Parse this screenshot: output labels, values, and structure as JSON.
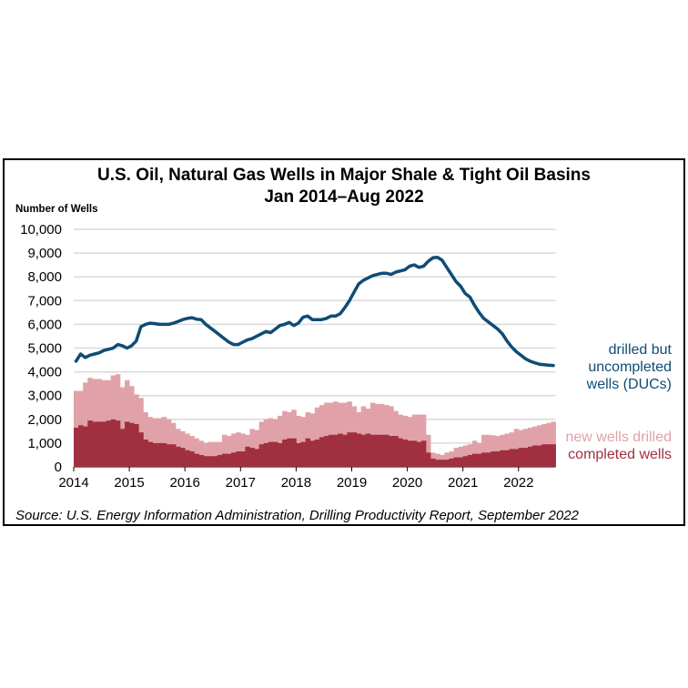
{
  "chart_data": {
    "type": "area",
    "title": "U.S. Oil, Natural Gas Wells in Major Shale & Tight Oil Basins",
    "subtitle": "Jan 2014–Aug 2022",
    "ylabel": "Number of Wells",
    "xlabel": "",
    "ylim": [
      0,
      10000
    ],
    "yticks": [
      "0",
      "1,000",
      "2,000",
      "3,000",
      "4,000",
      "5,000",
      "6,000",
      "7,000",
      "8,000",
      "9,000",
      "10,000"
    ],
    "xticks": [
      "2014",
      "2015",
      "2016",
      "2017",
      "2018",
      "2019",
      "2020",
      "2021",
      "2022"
    ],
    "x_start": "2014-01",
    "x_end": "2022-08",
    "frequency": "monthly",
    "grid": true,
    "source": "Source: U.S. Energy Information Administration, Drilling Productivity Report, September 2022",
    "series": [
      {
        "name": "new wells drilled",
        "kind": "step-area",
        "color": "#e0a2a8",
        "values": [
          3200,
          3200,
          3550,
          3750,
          3700,
          3700,
          3650,
          3650,
          3850,
          3900,
          3350,
          3650,
          3400,
          3050,
          2900,
          2300,
          2100,
          2050,
          2050,
          2100,
          2000,
          1850,
          1600,
          1500,
          1400,
          1300,
          1200,
          1100,
          1000,
          1050,
          1050,
          1050,
          1350,
          1300,
          1400,
          1450,
          1400,
          1350,
          1600,
          1550,
          1900,
          2000,
          2050,
          2000,
          2150,
          2350,
          2300,
          2400,
          2150,
          2100,
          2300,
          2250,
          2500,
          2600,
          2700,
          2700,
          2750,
          2700,
          2700,
          2750,
          2550,
          2300,
          2550,
          2450,
          2700,
          2650,
          2650,
          2600,
          2550,
          2350,
          2200,
          2150,
          2100,
          2200,
          2200,
          2200,
          1350,
          600,
          550,
          500,
          600,
          650,
          800,
          850,
          900,
          950,
          1100,
          1000,
          1350,
          1350,
          1330,
          1300,
          1350,
          1400,
          1450,
          1600,
          1550,
          1600,
          1650,
          1700,
          1750,
          1800,
          1850,
          1900
        ]
      },
      {
        "name": "completed wells",
        "kind": "step-area",
        "color": "#a0303f",
        "values": [
          1650,
          1750,
          1700,
          1950,
          1900,
          1900,
          1900,
          1950,
          2000,
          1950,
          1600,
          1900,
          1850,
          1800,
          1450,
          1150,
          1050,
          1000,
          1000,
          1000,
          950,
          950,
          850,
          800,
          700,
          650,
          550,
          500,
          450,
          450,
          450,
          500,
          550,
          550,
          600,
          650,
          650,
          850,
          800,
          750,
          950,
          1000,
          1050,
          1050,
          1000,
          1150,
          1200,
          1200,
          1000,
          1050,
          1200,
          1100,
          1150,
          1250,
          1300,
          1350,
          1350,
          1400,
          1350,
          1450,
          1450,
          1400,
          1350,
          1400,
          1350,
          1350,
          1350,
          1350,
          1300,
          1300,
          1200,
          1150,
          1100,
          1100,
          1050,
          1100,
          600,
          350,
          300,
          300,
          300,
          350,
          400,
          400,
          450,
          500,
          550,
          550,
          600,
          600,
          650,
          650,
          700,
          700,
          750,
          750,
          800,
          800,
          850,
          900,
          900,
          950,
          950,
          950
        ]
      },
      {
        "name": "drilled but uncompleted wells (DUCs)",
        "kind": "line",
        "color": "#0f4c75",
        "values": [
          4450,
          4750,
          4600,
          4700,
          4750,
          4800,
          4900,
          4950,
          5000,
          5150,
          5100,
          5000,
          5100,
          5300,
          5900,
          6000,
          6050,
          6030,
          6000,
          6000,
          6000,
          6050,
          6120,
          6200,
          6250,
          6280,
          6220,
          6200,
          6000,
          5850,
          5700,
          5550,
          5400,
          5250,
          5150,
          5150,
          5250,
          5350,
          5400,
          5500,
          5600,
          5700,
          5650,
          5800,
          5950,
          6000,
          6080,
          5950,
          6050,
          6300,
          6350,
          6200,
          6200,
          6200,
          6250,
          6350,
          6350,
          6450,
          6700,
          7000,
          7350,
          7700,
          7850,
          7950,
          8050,
          8100,
          8150,
          8150,
          8100,
          8200,
          8250,
          8300,
          8450,
          8500,
          8400,
          8450,
          8650,
          8800,
          8820,
          8700,
          8400,
          8100,
          7800,
          7600,
          7300,
          7150,
          6800,
          6500,
          6250,
          6100,
          5950,
          5800,
          5600,
          5300,
          5050,
          4850,
          4700,
          4550,
          4450,
          4380,
          4320,
          4300,
          4280,
          4270
        ]
      }
    ],
    "legend": {
      "duc": [
        "drilled but",
        "uncompleted",
        "wells (DUCs)"
      ],
      "drilled": "new wells drilled",
      "completed": "completed wells"
    },
    "legend_placement": "right"
  }
}
